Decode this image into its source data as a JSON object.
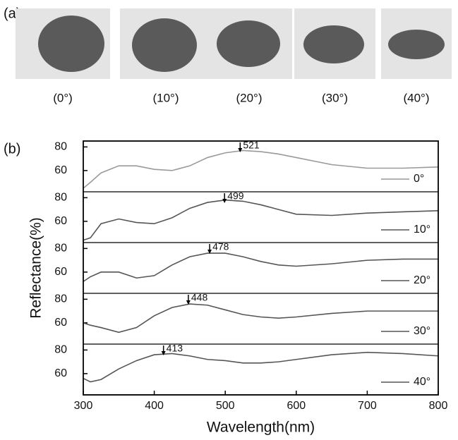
{
  "panel_a": {
    "label": "(a)",
    "labels": [
      "(0°)",
      "(10°)",
      "(20°)",
      "(30°)",
      "(40°)"
    ]
  },
  "panel_b": {
    "label": "(b)"
  },
  "chart_data": [
    {
      "type": "line",
      "xlim": [
        300,
        800
      ],
      "ylim": [
        42,
        85
      ],
      "yticks": [
        60,
        80
      ],
      "peak_x": 521,
      "x": [
        300,
        310,
        325,
        350,
        375,
        400,
        425,
        450,
        475,
        500,
        525,
        550,
        575,
        600,
        650,
        700,
        750,
        800
      ],
      "series": [
        {
          "name": "0°",
          "color": "#9a9a9a",
          "values": [
            45,
            50,
            58,
            64,
            64,
            61,
            60,
            64,
            71,
            75,
            77,
            76,
            74,
            71,
            65,
            62,
            62,
            63
          ]
        }
      ]
    },
    {
      "type": "line",
      "xlim": [
        300,
        800
      ],
      "ylim": [
        42,
        85
      ],
      "yticks": [
        60,
        80
      ],
      "peak_x": 499,
      "x": [
        300,
        310,
        325,
        350,
        375,
        400,
        425,
        450,
        475,
        500,
        525,
        550,
        575,
        600,
        650,
        700,
        750,
        800
      ],
      "series": [
        {
          "name": "10°",
          "color": "#555555",
          "values": [
            44,
            46,
            58,
            62,
            59,
            58,
            63,
            71,
            76,
            78,
            77,
            74,
            70,
            66,
            65,
            67,
            68,
            69
          ]
        }
      ]
    },
    {
      "type": "line",
      "xlim": [
        300,
        800
      ],
      "ylim": [
        42,
        85
      ],
      "yticks": [
        60,
        80
      ],
      "peak_x": 478,
      "x": [
        300,
        310,
        325,
        350,
        375,
        400,
        425,
        450,
        475,
        500,
        525,
        550,
        575,
        600,
        650,
        700,
        750,
        800
      ],
      "series": [
        {
          "name": "20°",
          "color": "#555555",
          "values": [
            52,
            56,
            60,
            60,
            55,
            57,
            66,
            73,
            76,
            76,
            73,
            69,
            66,
            65,
            67,
            70,
            71,
            71
          ]
        }
      ]
    },
    {
      "type": "line",
      "xlim": [
        300,
        800
      ],
      "ylim": [
        42,
        85
      ],
      "yticks": [
        60,
        80
      ],
      "peak_x": 448,
      "x": [
        300,
        310,
        325,
        350,
        375,
        400,
        425,
        450,
        475,
        500,
        525,
        550,
        575,
        600,
        650,
        700,
        750,
        800
      ],
      "series": [
        {
          "name": "30°",
          "color": "#555555",
          "values": [
            60,
            58,
            56,
            52,
            56,
            66,
            73,
            76,
            75,
            71,
            67,
            65,
            64,
            65,
            68,
            70,
            70,
            70
          ]
        }
      ]
    },
    {
      "type": "line",
      "xlim": [
        300,
        800
      ],
      "ylim": [
        42,
        85
      ],
      "yticks": [
        60,
        80
      ],
      "peak_x": 413,
      "xticks": [
        300,
        400,
        500,
        600,
        700,
        800
      ],
      "xlabel": "Wavelength(nm)",
      "ylabel": "Reflectance(%)",
      "x": [
        300,
        310,
        325,
        350,
        375,
        400,
        425,
        450,
        475,
        500,
        525,
        550,
        575,
        600,
        650,
        700,
        750,
        800
      ],
      "series": [
        {
          "name": "40°",
          "color": "#555555",
          "values": [
            56,
            53,
            55,
            64,
            71,
            76,
            77,
            75,
            72,
            71,
            69,
            69,
            70,
            72,
            76,
            78,
            77,
            75
          ]
        }
      ]
    }
  ]
}
